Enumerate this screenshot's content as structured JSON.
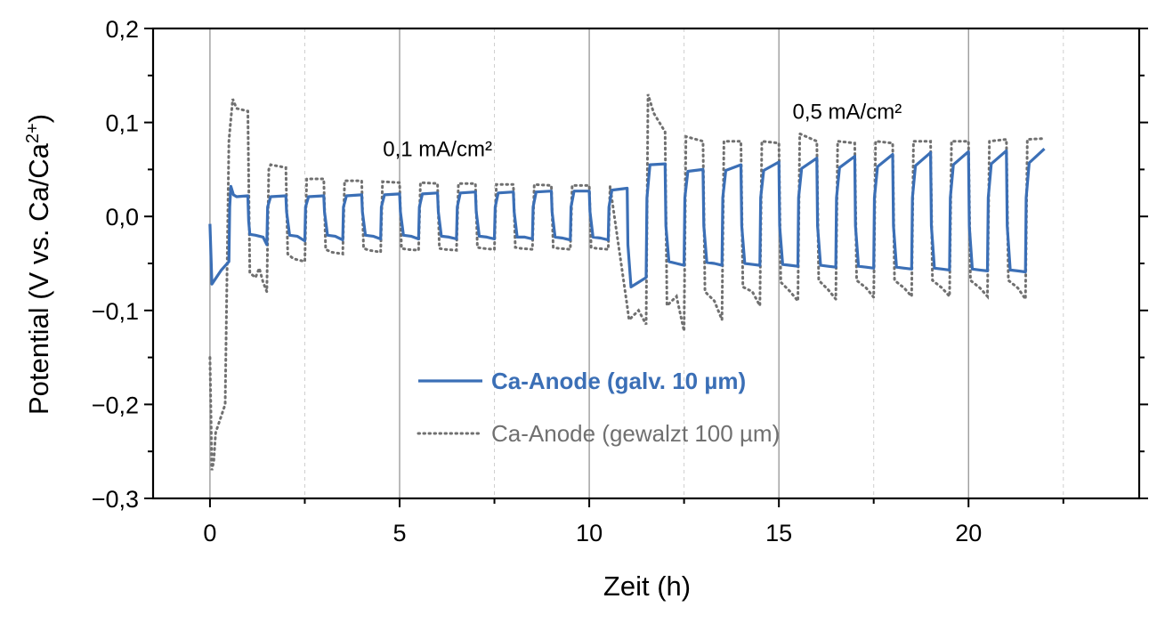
{
  "chart_data": {
    "type": "line",
    "xlabel": "Zeit (h)",
    "ylabel_main": "Potential (V vs. Ca/Ca",
    "ylabel_sup": "2+",
    "ylabel_close": ")",
    "xlim": [
      -1.5,
      24.5
    ],
    "ylim": [
      -0.3,
      0.2
    ],
    "x_ticks": [
      0,
      5,
      10,
      15,
      20
    ],
    "x_tick_labels": [
      "0",
      "5",
      "10",
      "15",
      "20"
    ],
    "x_minor_ticks": [
      2.5,
      7.5,
      12.5,
      17.5,
      22.5
    ],
    "y_ticks": [
      0.2,
      0.1,
      0.0,
      -0.1,
      -0.2,
      -0.3
    ],
    "y_tick_labels": [
      "0,2",
      "0,1",
      "0,0",
      "−0,1",
      "−0,2",
      "−0,3"
    ],
    "y_minor_ticks": [
      0.15,
      0.05,
      -0.05,
      -0.15,
      -0.25
    ],
    "grid": "vertical",
    "legend_position": "lower-center",
    "annotations": [
      {
        "text": "0,1 mA/cm²",
        "x": 6.0,
        "y": 0.064
      },
      {
        "text": "0,5 mA/cm²",
        "x": 16.8,
        "y": 0.104
      }
    ],
    "colors": {
      "series1": "#3b6fb6",
      "series2": "#707070"
    },
    "series": [
      {
        "name": "Ca-Anode (galv. 10 µm)",
        "style": "solid",
        "x": [
          0,
          0.05,
          0.3,
          0.5,
          0.52,
          0.55,
          0.62,
          0.7,
          1.0,
          1.02,
          1.05,
          1.2,
          1.4,
          1.5,
          1.52,
          1.6,
          2.0,
          2.02,
          2.1,
          2.3,
          2.5,
          2.52,
          2.6,
          3.0,
          3.02,
          3.1,
          3.3,
          3.5,
          3.52,
          3.6,
          4.0,
          4.02,
          4.1,
          4.3,
          4.5,
          4.52,
          4.6,
          5.0,
          5.02,
          5.1,
          5.3,
          5.5,
          5.52,
          5.6,
          6.0,
          6.02,
          6.1,
          6.3,
          6.5,
          6.52,
          6.6,
          7.0,
          7.02,
          7.1,
          7.3,
          7.5,
          7.52,
          7.6,
          8.0,
          8.02,
          8.1,
          8.3,
          8.5,
          8.52,
          8.6,
          9.0,
          9.02,
          9.1,
          9.3,
          9.5,
          9.52,
          9.6,
          10.0,
          10.02,
          10.1,
          10.3,
          10.5,
          10.52,
          10.6,
          11.0,
          11.02,
          11.1,
          11.3,
          11.5,
          11.52,
          11.6,
          12.0,
          12.02,
          12.1,
          12.3,
          12.5,
          12.52,
          12.6,
          13.0,
          13.02,
          13.1,
          13.3,
          13.5,
          13.52,
          13.6,
          14.0,
          14.02,
          14.1,
          14.3,
          14.5,
          14.52,
          14.6,
          15.0,
          15.02,
          15.1,
          15.3,
          15.5,
          15.52,
          15.6,
          16.0,
          16.02,
          16.1,
          16.3,
          16.5,
          16.52,
          16.6,
          17.0,
          17.02,
          17.1,
          17.3,
          17.5,
          17.52,
          17.6,
          18.0,
          18.02,
          18.1,
          18.3,
          18.5,
          18.52,
          18.6,
          19.0,
          19.02,
          19.1,
          19.3,
          19.5,
          19.52,
          19.6,
          20.0,
          20.02,
          20.1,
          20.3,
          20.5,
          20.52,
          20.6,
          21.0,
          21.02,
          21.1,
          21.3,
          21.5,
          21.52,
          21.6,
          22.0
        ],
        "y": [
          -0.008,
          -0.072,
          -0.057,
          -0.048,
          0.01,
          0.032,
          0.023,
          0.021,
          0.022,
          -0.005,
          -0.019,
          -0.02,
          -0.022,
          -0.03,
          0.01,
          0.021,
          0.022,
          0.005,
          -0.02,
          -0.021,
          -0.026,
          0.01,
          0.021,
          0.022,
          0.005,
          -0.02,
          -0.021,
          -0.025,
          0.01,
          0.022,
          0.023,
          0.005,
          -0.02,
          -0.021,
          -0.024,
          0.01,
          0.023,
          0.024,
          0.005,
          -0.02,
          -0.021,
          -0.024,
          0.01,
          0.024,
          0.025,
          0.005,
          -0.021,
          -0.022,
          -0.024,
          0.01,
          0.025,
          0.026,
          0.005,
          -0.021,
          -0.022,
          -0.024,
          0.01,
          0.025,
          0.026,
          0.005,
          -0.022,
          -0.022,
          -0.024,
          0.01,
          0.026,
          0.027,
          0.005,
          -0.022,
          -0.023,
          -0.025,
          0.01,
          0.027,
          0.027,
          0.005,
          -0.022,
          -0.023,
          -0.025,
          0.01,
          0.028,
          0.03,
          -0.03,
          -0.075,
          -0.07,
          -0.065,
          0.02,
          0.055,
          0.056,
          -0.01,
          -0.048,
          -0.05,
          -0.052,
          0.02,
          0.048,
          0.05,
          -0.01,
          -0.049,
          -0.05,
          -0.052,
          0.02,
          0.049,
          0.055,
          -0.01,
          -0.05,
          -0.051,
          -0.052,
          0.02,
          0.049,
          0.058,
          -0.01,
          -0.051,
          -0.052,
          -0.053,
          0.02,
          0.051,
          0.062,
          -0.01,
          -0.052,
          -0.053,
          -0.054,
          0.02,
          0.052,
          0.064,
          -0.01,
          -0.053,
          -0.054,
          -0.055,
          0.02,
          0.053,
          0.066,
          -0.01,
          -0.054,
          -0.055,
          -0.056,
          0.02,
          0.054,
          0.068,
          -0.01,
          -0.055,
          -0.056,
          -0.057,
          0.02,
          0.055,
          0.069,
          -0.01,
          -0.056,
          -0.057,
          -0.058,
          0.02,
          0.056,
          0.07,
          -0.01,
          -0.057,
          -0.058,
          -0.059,
          0.02,
          0.057,
          0.072
        ]
      },
      {
        "name": "Ca-Anode (gewalzt 100 µm)",
        "style": "dotted",
        "x": [
          0,
          0.05,
          0.1,
          0.15,
          0.4,
          0.5,
          0.52,
          0.6,
          0.7,
          1.0,
          1.05,
          1.2,
          1.3,
          1.4,
          1.5,
          1.55,
          1.6,
          2.0,
          2.05,
          2.2,
          2.5,
          2.55,
          3.0,
          3.05,
          3.2,
          3.5,
          3.55,
          4.0,
          4.05,
          4.2,
          4.5,
          4.55,
          5.0,
          5.05,
          5.2,
          5.5,
          5.55,
          6.0,
          6.05,
          6.2,
          6.5,
          6.55,
          7.0,
          7.05,
          7.2,
          7.5,
          7.55,
          8.0,
          8.05,
          8.2,
          8.5,
          8.55,
          9.0,
          9.05,
          9.2,
          9.5,
          9.55,
          10.0,
          10.05,
          10.2,
          10.5,
          10.55,
          11.0,
          11.05,
          11.3,
          11.5,
          11.55,
          11.7,
          12.0,
          12.05,
          12.3,
          12.5,
          12.55,
          13.0,
          13.05,
          13.3,
          13.5,
          13.55,
          14.0,
          14.05,
          14.3,
          14.5,
          14.55,
          15.0,
          15.05,
          15.3,
          15.5,
          15.55,
          16.0,
          16.05,
          16.3,
          16.5,
          16.55,
          17.0,
          17.05,
          17.3,
          17.5,
          17.55,
          18.0,
          18.05,
          18.3,
          18.5,
          18.55,
          19.0,
          19.05,
          19.3,
          19.5,
          19.55,
          20.0,
          20.05,
          20.3,
          20.5,
          20.55,
          21.0,
          21.05,
          21.3,
          21.5,
          21.55,
          22.0
        ],
        "y": [
          -0.15,
          -0.27,
          -0.26,
          -0.23,
          -0.2,
          0.08,
          0.09,
          0.125,
          0.115,
          0.112,
          -0.06,
          -0.065,
          -0.055,
          -0.07,
          -0.08,
          0.05,
          0.055,
          0.052,
          -0.04,
          -0.045,
          -0.048,
          0.04,
          0.04,
          -0.035,
          -0.038,
          -0.04,
          0.038,
          0.038,
          -0.034,
          -0.036,
          -0.038,
          0.037,
          0.036,
          -0.034,
          -0.035,
          -0.036,
          0.036,
          0.035,
          -0.034,
          -0.035,
          -0.036,
          0.035,
          0.035,
          -0.033,
          -0.034,
          -0.035,
          0.034,
          0.034,
          -0.033,
          -0.034,
          -0.035,
          0.034,
          0.033,
          -0.033,
          -0.034,
          -0.035,
          0.033,
          0.033,
          -0.033,
          -0.034,
          -0.035,
          0.032,
          -0.095,
          -0.11,
          -0.1,
          -0.115,
          0.13,
          0.11,
          0.09,
          -0.095,
          -0.085,
          -0.122,
          0.085,
          0.08,
          -0.08,
          -0.09,
          -0.11,
          0.08,
          0.08,
          -0.075,
          -0.08,
          -0.095,
          0.08,
          0.078,
          -0.07,
          -0.08,
          -0.09,
          0.088,
          0.08,
          -0.068,
          -0.078,
          -0.088,
          0.08,
          0.078,
          -0.068,
          -0.076,
          -0.086,
          0.08,
          0.078,
          -0.068,
          -0.076,
          -0.085,
          0.08,
          0.08,
          -0.068,
          -0.076,
          -0.085,
          0.08,
          0.08,
          -0.068,
          -0.076,
          -0.085,
          0.08,
          0.082,
          -0.068,
          -0.076,
          -0.088,
          0.082,
          0.083
        ]
      }
    ]
  }
}
